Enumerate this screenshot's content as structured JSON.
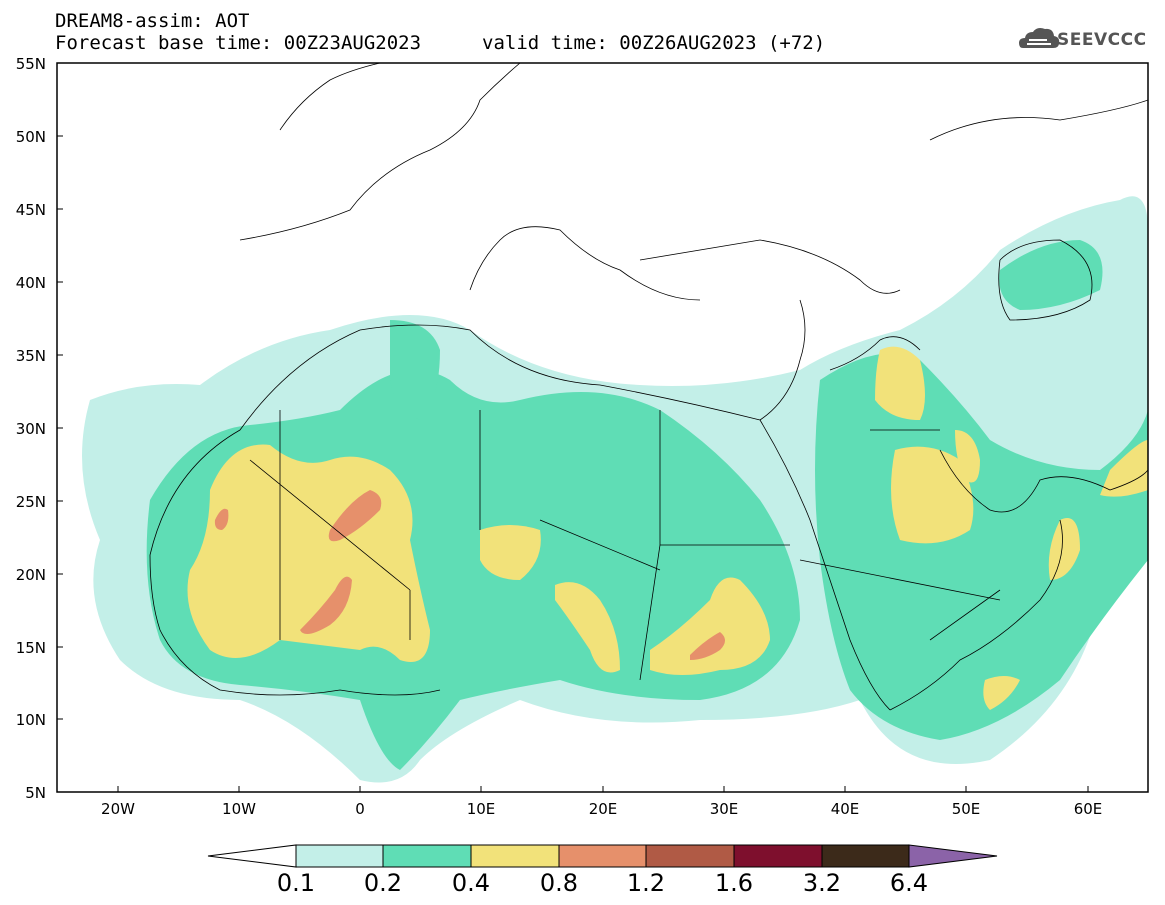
{
  "header": {
    "model_title": "DREAM8-assim: AOT",
    "base_time": "Forecast base time: 00Z23AUG2023",
    "valid_time": "valid time: 00Z26AUG2023 (+72)",
    "logo_text": "SEEVCCC"
  },
  "map": {
    "lat_ticks": [
      "55N",
      "50N",
      "45N",
      "40N",
      "35N",
      "30N",
      "25N",
      "20N",
      "15N",
      "10N",
      "5N"
    ],
    "lon_ticks": [
      "20W",
      "10W",
      "0",
      "10E",
      "20E",
      "30E",
      "40E",
      "50E",
      "60E"
    ],
    "lat_range": [
      5,
      55
    ],
    "lon_range": [
      -25,
      65
    ]
  },
  "colorbar": {
    "levels": [
      "0.1",
      "0.2",
      "0.4",
      "0.8",
      "1.2",
      "1.6",
      "3.2",
      "6.4"
    ],
    "colors": [
      "#c3efe8",
      "#5fddb5",
      "#f2e27a",
      "#e6906b",
      "#b05a45",
      "#7e0f2d",
      "#3c2a1a"
    ],
    "min_extend_color": "#ffffff",
    "max_extend_color": "#8b63a8"
  }
}
